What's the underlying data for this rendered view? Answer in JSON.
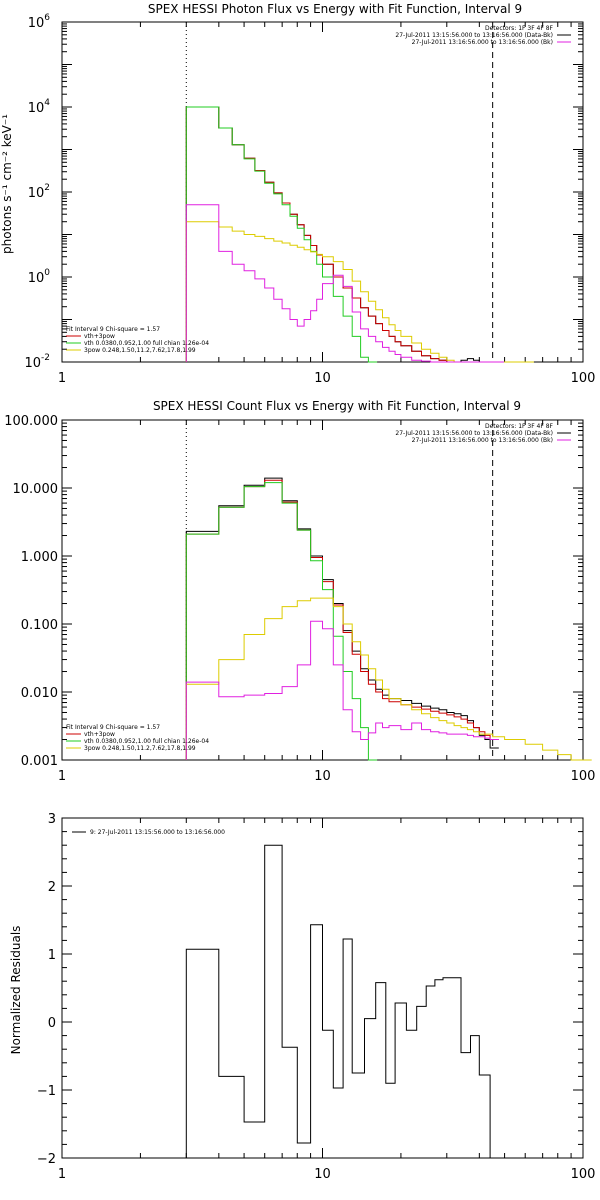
{
  "chart_data": [
    {
      "type": "line",
      "title": "SPEX HESSI Photon Flux vs Energy with Fit Function, Interval 9",
      "ylabel": "photons s⁻¹ cm⁻² keV⁻¹",
      "xlabel": "",
      "xscale": "log",
      "yscale": "log",
      "xlim": [
        1,
        100
      ],
      "ylim": [
        0.01,
        1000000
      ],
      "x_ticks": [
        "1",
        "10",
        "100"
      ],
      "y_ticks": [
        {
          "v": 0.01,
          "b": "10",
          "e": "-2"
        },
        {
          "v": 1,
          "b": "10",
          "e": "0"
        },
        {
          "v": 100,
          "b": "10",
          "e": "2"
        },
        {
          "v": 10000,
          "b": "10",
          "e": "4"
        },
        {
          "v": 1000000,
          "b": "10",
          "e": "6"
        }
      ],
      "vlines": [
        {
          "x": 3,
          "style": "dotted"
        },
        {
          "x": 45,
          "style": "dashed"
        }
      ],
      "legend_top": [
        "Detectors: 1F 3F 4F 8F",
        "27-Jul-2011 13:15:56.000 to 13:16:56.000 (Data-Bk)",
        "27-Jul-2011 13:16:56.000 to 13:16:56.000 (Bk)"
      ],
      "legend_top_colors": [
        "",
        "#000000",
        "#e020e0"
      ],
      "legend_bottom": [
        "Fit Interval 9   Chi-square = 1.57",
        "vth+3pow",
        "vth 0.0380,0.952,1.00  full chian 1.26e-04",
        "3pow 0.248,1.50,11.2,7.62,17.8,1.99"
      ],
      "legend_bottom_colors": [
        "",
        "#cc0000",
        "#22cc22",
        "#ddcc00"
      ],
      "series": [
        {
          "color": "#000000",
          "x": [
            3,
            3.5,
            4,
            4.5,
            5,
            5.5,
            6,
            6.5,
            7,
            7.5,
            8,
            8.5,
            9,
            9.5,
            10,
            11,
            12,
            13,
            14,
            15,
            16,
            17,
            18,
            19,
            20,
            22,
            24,
            26,
            28,
            30,
            32,
            34,
            36,
            38,
            40,
            42,
            44
          ],
          "y": [
            10000,
            10000,
            3200,
            1300,
            620,
            320,
            170,
            95,
            55,
            30,
            17,
            9.5,
            5.5,
            3.3,
            2,
            1,
            0.55,
            0.32,
            0.19,
            0.12,
            0.08,
            0.055,
            0.04,
            0.03,
            0.024,
            0.018,
            0.014,
            0.012,
            0.011,
            0.01,
            0.01,
            0.011,
            0.012,
            0.011,
            0.009,
            0.008,
            0.008
          ]
        },
        {
          "color": "#cc0000",
          "x": [
            3,
            3.5,
            4,
            4.5,
            5,
            5.5,
            6,
            6.5,
            7,
            7.5,
            8,
            8.5,
            9,
            9.5,
            10,
            11,
            12,
            13,
            14,
            15,
            16,
            17,
            18,
            19,
            20,
            22,
            24,
            26,
            28,
            30,
            32,
            34,
            36,
            38,
            40,
            42,
            44
          ],
          "y": [
            10000,
            10000,
            3200,
            1300,
            620,
            320,
            170,
            95,
            55,
            30,
            17,
            9.5,
            5.5,
            3.3,
            2,
            1,
            0.55,
            0.32,
            0.19,
            0.12,
            0.08,
            0.055,
            0.04,
            0.03,
            0.024,
            0.018,
            0.014,
            0.012,
            0.011,
            0.01,
            0.009,
            0.008,
            0.008,
            0.007,
            0.007,
            0.006,
            0.006
          ]
        },
        {
          "color": "#22cc22",
          "x": [
            3,
            3.5,
            4,
            4.5,
            5,
            5.5,
            6,
            6.5,
            7,
            7.5,
            8,
            8.5,
            9,
            9.5,
            10,
            11,
            12,
            13,
            14,
            15
          ],
          "y": [
            10000,
            10000,
            3200,
            1300,
            600,
            310,
            160,
            90,
            50,
            27,
            14,
            7.5,
            4,
            2,
            1,
            0.35,
            0.12,
            0.04,
            0.013,
            0.005
          ]
        },
        {
          "color": "#ddcc00",
          "x": [
            3,
            3.5,
            4,
            4.5,
            5,
            5.5,
            6,
            6.5,
            7,
            7.5,
            8,
            8.5,
            9,
            9.5,
            10,
            11,
            12,
            13,
            14,
            15,
            16,
            17,
            18,
            19,
            20,
            22,
            24,
            26,
            28,
            30,
            32,
            34,
            36,
            38,
            40,
            42,
            44,
            48,
            52,
            56,
            60
          ],
          "y": [
            20,
            20,
            15,
            12,
            10,
            9,
            8,
            7,
            6.3,
            5.6,
            5,
            4.4,
            3.9,
            3.4,
            3,
            2.3,
            1.5,
            0.8,
            0.45,
            0.27,
            0.17,
            0.11,
            0.075,
            0.055,
            0.04,
            0.028,
            0.02,
            0.016,
            0.013,
            0.011,
            0.01,
            0.009,
            0.0085,
            0.008,
            0.0075,
            0.007,
            0.0065,
            0.006,
            0.0055,
            0.005,
            0.005
          ]
        },
        {
          "color": "#e020e0",
          "x": [
            3,
            3.5,
            4,
            4.5,
            5,
            5.5,
            6,
            6.5,
            7,
            7.5,
            8,
            8.5,
            9,
            9.5,
            10,
            11,
            12,
            13,
            14,
            15,
            16,
            17,
            18,
            19,
            20,
            22,
            24,
            26,
            28,
            30,
            32,
            34,
            36,
            38,
            40,
            42,
            44,
            46
          ],
          "y": [
            50,
            50,
            4,
            2,
            1.4,
            0.9,
            0.55,
            0.3,
            0.18,
            0.1,
            0.07,
            0.1,
            0.16,
            0.3,
            0.7,
            1.1,
            0.6,
            0.15,
            0.06,
            0.04,
            0.03,
            0.022,
            0.018,
            0.015,
            0.013,
            0.011,
            0.0105,
            0.0098,
            0.0095,
            0.0092,
            0.009,
            0.0088,
            0.0086,
            0.0085,
            0.0084,
            0.0083,
            0.0082,
            0.0082
          ]
        }
      ]
    },
    {
      "type": "line",
      "title": "SPEX HESSI Count Flux vs Energy with Fit Function, Interval 9",
      "xlabel": "",
      "ylabel": "",
      "xscale": "log",
      "yscale": "log",
      "xlim": [
        1,
        100
      ],
      "ylim": [
        0.001,
        100
      ],
      "x_ticks": [
        "1",
        "10",
        "100"
      ],
      "y_ticks": [
        {
          "v": 0.001,
          "t": "0.001"
        },
        {
          "v": 0.01,
          "t": "0.010"
        },
        {
          "v": 0.1,
          "t": "0.100"
        },
        {
          "v": 1,
          "t": "1.000"
        },
        {
          "v": 10,
          "t": "10.000"
        },
        {
          "v": 100,
          "t": "100.000"
        }
      ],
      "vlines": [
        {
          "x": 3,
          "style": "dotted"
        },
        {
          "x": 45,
          "style": "dashed"
        }
      ],
      "legend_top": [
        "Detectors: 1F 3F 4F 8F",
        "27-Jul-2011 13:15:56.000 to 13:16:56.000 (Data-Bk)",
        "27-Jul-2011 13:16:56.000 to 13:16:56.000 (Bk)"
      ],
      "legend_top_colors": [
        "",
        "#000000",
        "#e020e0"
      ],
      "legend_bottom": [
        "Fit Interval 9   Chi-square = 1.57",
        "vth+3pow",
        "vth 0.0380,0.952,1.00  full chian 1.26e-04",
        "3pow 0.248,1.50,11.2,7.62,17.8,1.99"
      ],
      "legend_bottom_colors": [
        "",
        "#cc0000",
        "#22cc22",
        "#ddcc00"
      ],
      "series": [
        {
          "color": "#000000",
          "x": [
            3,
            4,
            5,
            6,
            7,
            8,
            9,
            10,
            11,
            12,
            13,
            14,
            15,
            16,
            17,
            18,
            20,
            22,
            24,
            26,
            28,
            30,
            32,
            34,
            36,
            38,
            40,
            42,
            44
          ],
          "y": [
            2.3,
            5.5,
            11,
            14,
            6.5,
            2.5,
            1,
            0.45,
            0.2,
            0.08,
            0.04,
            0.022,
            0.015,
            0.011,
            0.009,
            0.008,
            0.0075,
            0.0068,
            0.0062,
            0.0058,
            0.0055,
            0.005,
            0.0048,
            0.0045,
            0.0038,
            0.003,
            0.0023,
            0.002,
            0.0015
          ]
        },
        {
          "color": "#cc0000",
          "x": [
            3,
            4,
            5,
            6,
            7,
            8,
            9,
            10,
            11,
            12,
            13,
            14,
            15,
            16,
            17,
            18,
            20,
            22,
            24,
            26,
            28,
            30,
            32,
            34,
            36,
            38,
            40,
            42,
            44
          ],
          "y": [
            2.1,
            5.2,
            10.5,
            13,
            6.2,
            2.4,
            0.95,
            0.42,
            0.19,
            0.075,
            0.036,
            0.02,
            0.013,
            0.01,
            0.008,
            0.0072,
            0.0065,
            0.006,
            0.0056,
            0.0052,
            0.0049,
            0.0046,
            0.0043,
            0.004,
            0.0035,
            0.003,
            0.0026,
            0.0023,
            0.002
          ]
        },
        {
          "color": "#22cc22",
          "x": [
            3,
            4,
            5,
            6,
            7,
            8,
            9,
            10,
            11,
            12,
            13,
            14,
            15
          ],
          "y": [
            2.1,
            5.2,
            10.5,
            12,
            6,
            2.4,
            0.85,
            0.32,
            0.066,
            0.02,
            0.008,
            0.003,
            0.001
          ]
        },
        {
          "color": "#ddcc00",
          "x": [
            3,
            4,
            5,
            6,
            7,
            8,
            9,
            10,
            11,
            12,
            13,
            14,
            15,
            16,
            17,
            18,
            20,
            22,
            24,
            26,
            28,
            30,
            32,
            34,
            36,
            38,
            40,
            45,
            50,
            60,
            70,
            80,
            90,
            100
          ],
          "y": [
            0.013,
            0.03,
            0.07,
            0.12,
            0.18,
            0.22,
            0.24,
            0.24,
            0.18,
            0.1,
            0.055,
            0.035,
            0.022,
            0.015,
            0.011,
            0.008,
            0.0065,
            0.0055,
            0.0048,
            0.0042,
            0.0038,
            0.0035,
            0.0032,
            0.003,
            0.0028,
            0.0026,
            0.0024,
            0.0022,
            0.002,
            0.0017,
            0.0014,
            0.0012,
            0.001,
            0.0009
          ]
        },
        {
          "color": "#e020e0",
          "x": [
            3,
            4,
            5,
            6,
            7,
            8,
            9,
            10,
            11,
            12,
            13,
            14,
            15,
            16,
            17,
            18,
            20,
            22,
            24,
            26,
            28,
            30,
            32,
            34,
            36,
            38,
            40,
            42,
            44
          ],
          "y": [
            0.014,
            0.0085,
            0.009,
            0.0095,
            0.012,
            0.025,
            0.11,
            0.085,
            0.025,
            0.0055,
            0.0026,
            0.002,
            0.0025,
            0.0035,
            0.003,
            0.0032,
            0.0028,
            0.0035,
            0.0028,
            0.0026,
            0.0025,
            0.0024,
            0.0024,
            0.0024,
            0.0023,
            0.0022,
            0.0022,
            0.0021,
            0.002
          ]
        }
      ]
    },
    {
      "type": "line",
      "title": "",
      "ylabel": "Normalized Residuals",
      "xlabel": "",
      "xscale": "log",
      "xlim": [
        1,
        100
      ],
      "ylim": [
        -2,
        3
      ],
      "x_ticks": [
        "1",
        "10",
        "100"
      ],
      "y_ticks": [
        "-2",
        "-1",
        "0",
        "1",
        "2",
        "3"
      ],
      "legend": "9: 27-Jul-2011 13:15:56.000 to 13:16:56.000",
      "legend_color": "#000000",
      "bins": [
        [
          3.0,
          4.0,
          1.07
        ],
        [
          4.0,
          5.0,
          -0.8
        ],
        [
          5.0,
          6.0,
          -1.47
        ],
        [
          6.0,
          7.0,
          2.6
        ],
        [
          7.0,
          8.0,
          -0.37
        ],
        [
          8.0,
          9.0,
          -1.78
        ],
        [
          9.0,
          10.0,
          1.43
        ],
        [
          10.0,
          11.0,
          -0.12
        ],
        [
          11.0,
          12.0,
          -0.97
        ],
        [
          12.0,
          13.0,
          1.22
        ],
        [
          13.0,
          14.5,
          -0.75
        ],
        [
          14.5,
          16.0,
          0.05
        ],
        [
          16.0,
          17.5,
          0.58
        ],
        [
          17.5,
          19.0,
          -0.9
        ],
        [
          19.0,
          21.0,
          0.28
        ],
        [
          21.0,
          23.0,
          -0.12
        ],
        [
          23.0,
          25.0,
          0.23
        ],
        [
          25.0,
          27.0,
          0.53
        ],
        [
          27.0,
          29.0,
          0.62
        ],
        [
          29.0,
          31.0,
          0.65
        ],
        [
          31.0,
          34.0,
          0.65
        ],
        [
          34.0,
          37.0,
          -0.45
        ],
        [
          37.0,
          40.0,
          -0.2
        ],
        [
          40.0,
          44.0,
          -0.78
        ]
      ]
    }
  ]
}
